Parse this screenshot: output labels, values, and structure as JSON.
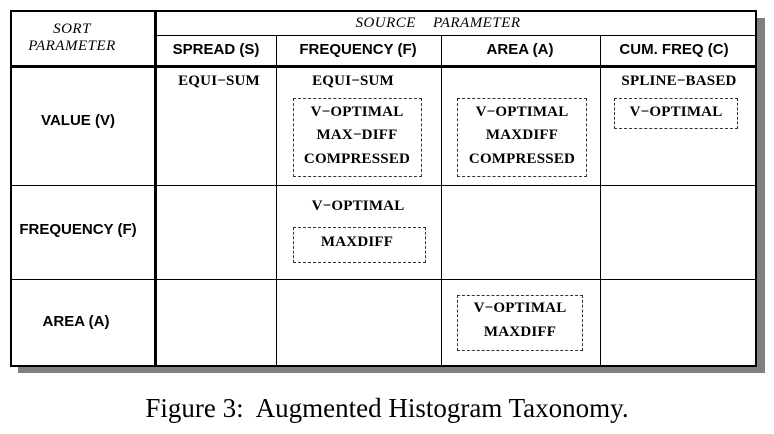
{
  "header": {
    "sort_parameter_line1": "SORT",
    "sort_parameter_line2": "PARAMETER",
    "source_parameter": "SOURCE    PARAMETER"
  },
  "columns": [
    "SPREAD (S)",
    "FREQUENCY (F)",
    "AREA (A)",
    "CUM. FREQ (C)"
  ],
  "rows": [
    "VALUE (V)",
    "FREQUENCY (F)",
    "AREA (A)"
  ],
  "cells": {
    "value_spread": [
      "EQUI−SUM"
    ],
    "value_frequency_plain": [
      "EQUI−SUM"
    ],
    "value_frequency_boxed": [
      "V−OPTIMAL",
      "MAX−DIFF",
      "COMPRESSED"
    ],
    "value_area_boxed": [
      "V−OPTIMAL",
      "MAXDIFF",
      "COMPRESSED"
    ],
    "value_cumfreq_plain": [
      "SPLINE−BASED"
    ],
    "value_cumfreq_boxed": [
      "V−OPTIMAL"
    ],
    "frequency_frequency_plain": [
      "V−OPTIMAL"
    ],
    "frequency_frequency_boxed": [
      "MAXDIFF"
    ],
    "area_area_boxed": [
      "V−OPTIMAL",
      "MAXDIFF"
    ]
  },
  "caption": "Figure 3:  Augmented Histogram Taxonomy."
}
